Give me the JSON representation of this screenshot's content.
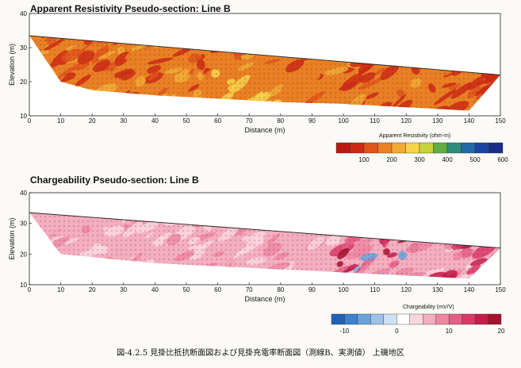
{
  "caption": "図-4.2.5 見掛比抵抗断面図および見掛充電率断面図（測線B、実測値） 上磯地区",
  "chart_data": [
    {
      "type": "heatmap",
      "title": "Apparent Resistivity Pseudo-section: Line B",
      "xlabel": "Distance (m)",
      "ylabel": "Elevation (m)",
      "xlim": [
        0,
        150
      ],
      "ylim": [
        10,
        40
      ],
      "xticks": [
        0,
        10,
        20,
        30,
        40,
        50,
        60,
        70,
        80,
        90,
        100,
        110,
        120,
        130,
        140,
        150
      ],
      "yticks": [
        10,
        20,
        30,
        40
      ],
      "surface": [
        [
          0,
          33.5
        ],
        [
          150,
          22
        ]
      ],
      "section_bottom": [
        [
          10,
          20
        ],
        [
          20,
          17.5
        ],
        [
          40,
          16
        ],
        [
          80,
          14
        ],
        [
          100,
          13.5
        ],
        [
          120,
          12.5
        ],
        [
          140,
          11.5
        ],
        [
          150,
          22
        ]
      ],
      "colorbar": {
        "title": "Apparent Resistivity (ohm-m)",
        "ticks": [
          "100",
          "200",
          "300",
          "400",
          "500",
          "600"
        ],
        "colors": [
          "#b81a12",
          "#cc2a14",
          "#e0541c",
          "#ea7f24",
          "#f2a935",
          "#f6d44a",
          "#c8d23a",
          "#5fae3e",
          "#2d8d7a",
          "#1f6aa5",
          "#1a45a0",
          "#1a2c86"
        ]
      },
      "grid": "off"
    },
    {
      "type": "heatmap",
      "title": "Chargeability Pseudo-section: Line B",
      "xlabel": "Distance (m)",
      "ylabel": "Elevation (m)",
      "xlim": [
        0,
        150
      ],
      "ylim": [
        10,
        40
      ],
      "xticks": [
        0,
        10,
        20,
        30,
        40,
        50,
        60,
        70,
        80,
        90,
        100,
        110,
        120,
        130,
        140,
        150
      ],
      "yticks": [
        10,
        20,
        30,
        40
      ],
      "surface": [
        [
          0,
          33.5
        ],
        [
          150,
          22
        ]
      ],
      "section_bottom": [
        [
          10,
          20
        ],
        [
          20,
          19
        ],
        [
          40,
          17
        ],
        [
          80,
          15
        ],
        [
          100,
          14
        ],
        [
          120,
          13
        ],
        [
          140,
          12
        ],
        [
          150,
          22
        ]
      ],
      "colorbar": {
        "title": "Chargeability (mV/V)",
        "ticks": [
          "-10",
          "0",
          "10",
          "20"
        ],
        "colors": [
          "#1e63b8",
          "#3d82cc",
          "#6aa2dc",
          "#9cc2e8",
          "#cfe0f2",
          "#ffffff",
          "#fbd6df",
          "#f5adc0",
          "#ef86a2",
          "#e65e85",
          "#d83a66",
          "#c41d4a",
          "#a7122f"
        ]
      },
      "grid": "off"
    }
  ]
}
